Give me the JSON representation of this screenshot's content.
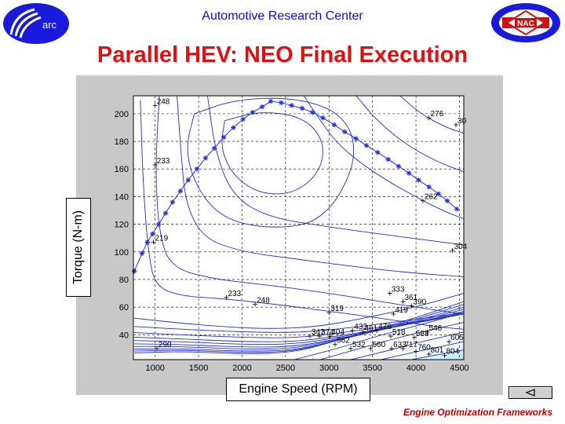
{
  "header": {
    "org_name": "Automotive Research Center",
    "left_logo_text": "arc",
    "right_logo_text": "NAC",
    "logo_color": "#1a1adc"
  },
  "slide": {
    "title": "Parallel HEV: NEO Final Execution",
    "title_color": "#e01010"
  },
  "footer": {
    "text": "Engine Optimization Frameworks",
    "back_icon": "left-triangle-icon"
  },
  "chart_data": {
    "type": "contour",
    "xlabel": "Engine Speed (RPM)",
    "ylabel": "Torque (N-m)",
    "xlim": [
      750,
      4550
    ],
    "ylim": [
      22,
      213
    ],
    "xticks": [
      1000,
      1500,
      2000,
      2500,
      3000,
      3500,
      4000,
      4500
    ],
    "yticks": [
      40,
      60,
      80,
      100,
      120,
      140,
      160,
      180,
      200
    ],
    "grid": true,
    "series": [
      {
        "marker": "*",
        "color": "#2030e0",
        "x": [
          760,
          850,
          910,
          970,
          1040,
          1120,
          1200,
          1290,
          1380,
          1480,
          1580,
          1680,
          1790,
          1900,
          2010,
          2120,
          2230,
          2330,
          2450,
          2570,
          2690,
          2810,
          2930,
          3060,
          3180,
          3310,
          3430,
          3560,
          3680,
          3800,
          3920,
          4030,
          4150,
          4260,
          4360,
          4470
        ],
        "y": [
          86,
          99,
          107,
          113,
          120,
          128,
          136,
          144,
          152,
          160,
          168,
          175,
          183,
          190,
          196,
          201,
          205,
          209,
          208,
          206,
          204,
          201,
          197,
          192,
          187,
          182,
          177,
          172,
          167,
          162,
          157,
          152,
          147,
          142,
          137,
          131
        ]
      }
    ],
    "contour_labels": [
      {
        "text": "248",
        "x": 1000,
        "y": 206
      },
      {
        "text": "233",
        "x": 1000,
        "y": 163
      },
      {
        "text": "219",
        "x": 980,
        "y": 107
      },
      {
        "text": "233",
        "x": 1820,
        "y": 67
      },
      {
        "text": "248",
        "x": 2150,
        "y": 62
      },
      {
        "text": "290",
        "x": 1020,
        "y": 30
      },
      {
        "text": "276",
        "x": 4150,
        "y": 197
      },
      {
        "text": "30",
        "x": 4460,
        "y": 192
      },
      {
        "text": "262",
        "x": 4080,
        "y": 137
      },
      {
        "text": "304",
        "x": 4420,
        "y": 101
      },
      {
        "text": "319",
        "x": 3000,
        "y": 56
      },
      {
        "text": "333",
        "x": 3700,
        "y": 70
      },
      {
        "text": "361",
        "x": 3850,
        "y": 64
      },
      {
        "text": "390",
        "x": 3950,
        "y": 61
      },
      {
        "text": "419",
        "x": 3740,
        "y": 55
      },
      {
        "text": "347",
        "x": 2780,
        "y": 39
      },
      {
        "text": "374",
        "x": 2890,
        "y": 39
      },
      {
        "text": "404",
        "x": 3010,
        "y": 39
      },
      {
        "text": "433",
        "x": 3270,
        "y": 43
      },
      {
        "text": "461",
        "x": 3390,
        "y": 42
      },
      {
        "text": "476",
        "x": 3550,
        "y": 43
      },
      {
        "text": "518",
        "x": 3710,
        "y": 39
      },
      {
        "text": "546",
        "x": 4130,
        "y": 42
      },
      {
        "text": "588",
        "x": 3980,
        "y": 38
      },
      {
        "text": "605",
        "x": 4380,
        "y": 35
      },
      {
        "text": "562",
        "x": 3070,
        "y": 33
      },
      {
        "text": "532",
        "x": 3250,
        "y": 30
      },
      {
        "text": "560",
        "x": 3480,
        "y": 30
      },
      {
        "text": "633",
        "x": 3720,
        "y": 30
      },
      {
        "text": "717",
        "x": 3850,
        "y": 30
      },
      {
        "text": "760",
        "x": 4000,
        "y": 28
      },
      {
        "text": "801",
        "x": 4150,
        "y": 26
      },
      {
        "text": "804",
        "x": 4330,
        "y": 25
      }
    ],
    "colormap_region": "high values (bottom-right, low torque / high speed)"
  }
}
